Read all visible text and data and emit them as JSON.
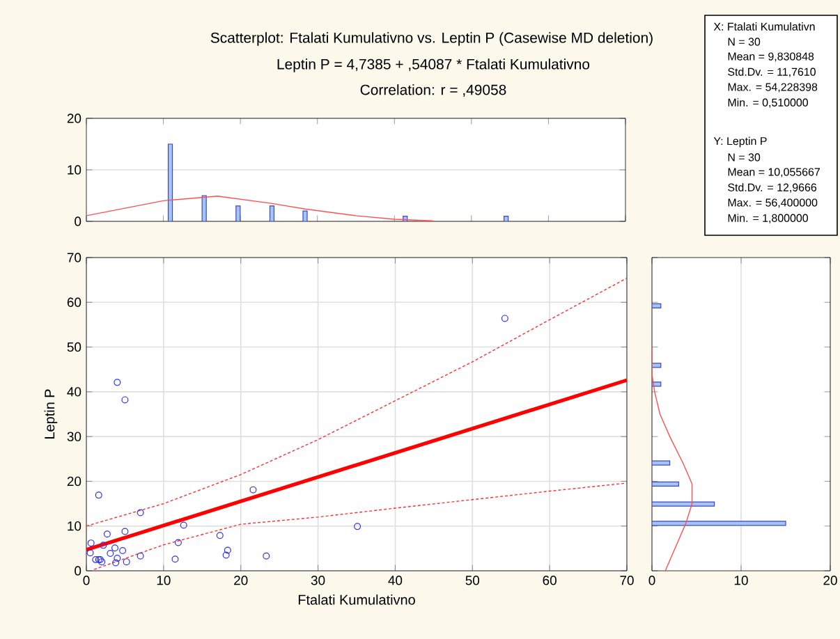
{
  "chart_data": [
    {
      "type": "scatter",
      "xlabel": "Ftalati Kumulativno",
      "ylabel": "Leptin P",
      "xlim": [
        0,
        70
      ],
      "ylim": [
        0,
        70
      ],
      "xticks": [
        0,
        10,
        20,
        30,
        40,
        50,
        60,
        70
      ],
      "yticks": [
        0,
        10,
        20,
        30,
        40,
        50,
        60,
        70
      ],
      "grid": true,
      "series": [
        {
          "type": "scatter",
          "marker": "circle",
          "color": "#3030f0",
          "x": [
            0.5,
            0.6,
            1.2,
            1.6,
            1.8,
            1.6,
            2.0,
            2.2,
            2.7,
            3.1,
            3.7,
            3.8,
            4.0,
            4.0,
            4.7,
            5.0,
            5.0,
            5.2,
            7.0,
            7.0,
            11.5,
            11.9,
            12.6,
            17.3,
            18.1,
            18.3,
            21.6,
            23.3,
            35.1,
            54.2
          ],
          "values": [
            4.0,
            6.2,
            2.5,
            2.5,
            2.5,
            16.9,
            2.0,
            5.7,
            8.2,
            3.9,
            5.1,
            1.8,
            42.1,
            2.8,
            4.5,
            38.2,
            8.8,
            2.0,
            13.0,
            3.3,
            2.6,
            6.3,
            10.2,
            7.9,
            3.5,
            4.6,
            18.1,
            3.3,
            9.9,
            56.4
          ]
        },
        {
          "type": "line",
          "line_style": "solid",
          "color": "#ff0000",
          "x": [
            0,
            70
          ],
          "values": [
            4.7,
            42.6
          ]
        },
        {
          "type": "line",
          "line_style": "dashed",
          "color": "#ff3030",
          "x": [
            0,
            10,
            20,
            30,
            40,
            50,
            60,
            70
          ],
          "values": [
            10.0,
            15.0,
            21.5,
            29.3,
            38.0,
            46.7,
            56.1,
            65.4
          ]
        },
        {
          "type": "line",
          "line_style": "dashed",
          "color": "#ff3030",
          "x": [
            1,
            10,
            20,
            30,
            40,
            50,
            60,
            70
          ],
          "values": [
            0.3,
            5.8,
            10.4,
            12.0,
            14.0,
            15.9,
            17.8,
            19.6
          ]
        }
      ]
    },
    {
      "type": "bar",
      "title": "Scatterplot: Ftalati Kumulativno vs. Leptin P (Casewise MD deletion)",
      "subtitle": "Leptin P = 4,7385 + ,54087 * Ftalati Kumulativno",
      "annotations": [
        "Correlation: r =  ,49058"
      ],
      "xlim": [
        0,
        70
      ],
      "ylim": [
        0,
        20
      ],
      "xticks": [
        {
          "value": 0,
          "label": null
        },
        {
          "value": 10,
          "label": null
        },
        {
          "value": 20,
          "label": null
        },
        {
          "value": 30,
          "label": null
        },
        {
          "value": 40,
          "label": null
        },
        {
          "value": 50,
          "label": null
        },
        {
          "value": 60,
          "label": null
        },
        {
          "value": 70,
          "label": null
        }
      ],
      "yticks": [
        0,
        10,
        20
      ],
      "tick_labels": "y",
      "grid": "y",
      "series": [
        {
          "type": "bar",
          "color": "#a6c4f0",
          "x": [
            10.9,
            15.3,
            19.7,
            24.1,
            28.4,
            41.4,
            54.5
          ],
          "values": [
            15,
            5,
            3,
            3,
            2,
            1,
            1
          ]
        },
        {
          "type": "line",
          "color": "#ff5050",
          "x": [
            0,
            10,
            17,
            24,
            28.4,
            35,
            40,
            45
          ],
          "values": [
            1.1,
            4.0,
            4.9,
            3.5,
            2.4,
            1.1,
            0.4,
            0.1
          ]
        }
      ]
    },
    {
      "type": "bar",
      "orientation": "horizontal",
      "xlim": [
        0,
        20
      ],
      "ylim": [
        0,
        70
      ],
      "xticks": [
        0,
        10,
        20
      ],
      "yticks": [
        {
          "value": 0,
          "label": null
        },
        {
          "value": 10,
          "label": null
        },
        {
          "value": 20,
          "label": null
        },
        {
          "value": 30,
          "label": null
        },
        {
          "value": 40,
          "label": null
        },
        {
          "value": 50,
          "label": null
        },
        {
          "value": 60,
          "label": null
        },
        {
          "value": 70,
          "label": null
        }
      ],
      "tick_labels": "x",
      "grid": "x",
      "series": [
        {
          "type": "bar",
          "color": "#a6c4f0",
          "x": [
            10.6,
            14.9,
            19.4,
            24.1,
            41.7,
            45.9,
            59.2
          ],
          "values": [
            15,
            7,
            3,
            2,
            1,
            1,
            1
          ]
        },
        {
          "type": "line",
          "color": "#ff5050",
          "x": [
            0,
            10.6,
            15,
            19.4,
            24,
            30,
            35,
            40,
            44,
            50
          ],
          "values": [
            1.5,
            3.8,
            4.5,
            4.5,
            3.5,
            2.0,
            0.9,
            0.3,
            0,
            0
          ]
        }
      ]
    },
    {
      "type": "other",
      "annotations": [
        "X:  Ftalati Kumulativn",
        "N = 30",
        "Mean = 9,830848",
        "Std.Dv. = 11,7610",
        "Max. = 54,228398",
        "Min. = 0,510000",
        "Y:  Leptin P",
        "N = 30",
        "Mean = 10,055667",
        "Std.Dv. = 12,9666",
        "Max. = 56,400000",
        "Min. = 1,800000"
      ]
    }
  ]
}
